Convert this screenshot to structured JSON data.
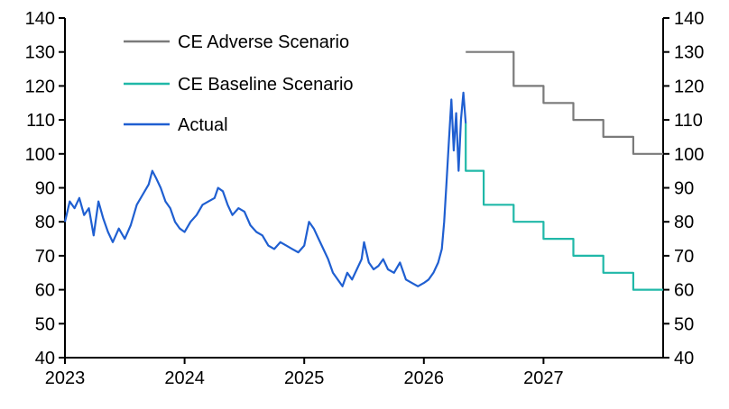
{
  "chart_data": {
    "type": "line",
    "title": "",
    "xlabel": "",
    "ylabel": "",
    "ylim": [
      40,
      140
    ],
    "yticks": [
      40,
      50,
      60,
      70,
      80,
      90,
      100,
      110,
      120,
      130,
      140
    ],
    "xlim": [
      2023.0,
      2028.0
    ],
    "xticks": [
      "2023",
      "2024",
      "2025",
      "2026",
      "2027"
    ],
    "dual_y_axis": true,
    "grid": false,
    "legend_position": "top-left",
    "legend": [
      "CE Adverse Scenario",
      "CE Baseline Scenario",
      "Actual"
    ],
    "series": [
      {
        "name": "CE Adverse Scenario",
        "color": "#7a7a7a",
        "style": "step",
        "points": [
          [
            2026.35,
            130
          ],
          [
            2026.75,
            130
          ],
          [
            2026.75,
            120
          ],
          [
            2027.0,
            120
          ],
          [
            2027.0,
            115
          ],
          [
            2027.25,
            115
          ],
          [
            2027.25,
            110
          ],
          [
            2027.5,
            110
          ],
          [
            2027.5,
            105
          ],
          [
            2027.75,
            105
          ],
          [
            2027.75,
            100
          ],
          [
            2028.0,
            100
          ]
        ]
      },
      {
        "name": "CE Baseline Scenario",
        "color": "#20b8a8",
        "style": "step",
        "points": [
          [
            2026.35,
            109
          ],
          [
            2026.35,
            95
          ],
          [
            2026.5,
            95
          ],
          [
            2026.5,
            85
          ],
          [
            2026.75,
            85
          ],
          [
            2026.75,
            80
          ],
          [
            2027.0,
            80
          ],
          [
            2027.0,
            75
          ],
          [
            2027.25,
            75
          ],
          [
            2027.25,
            70
          ],
          [
            2027.5,
            70
          ],
          [
            2027.5,
            65
          ],
          [
            2027.75,
            65
          ],
          [
            2027.75,
            60
          ],
          [
            2028.0,
            60
          ]
        ]
      },
      {
        "name": "Actual",
        "color": "#1f5fd1",
        "style": "line",
        "points": [
          [
            2023.0,
            80
          ],
          [
            2023.04,
            86
          ],
          [
            2023.08,
            84
          ],
          [
            2023.12,
            87
          ],
          [
            2023.16,
            82
          ],
          [
            2023.2,
            84
          ],
          [
            2023.24,
            76
          ],
          [
            2023.28,
            86
          ],
          [
            2023.32,
            81
          ],
          [
            2023.36,
            77
          ],
          [
            2023.4,
            74
          ],
          [
            2023.45,
            78
          ],
          [
            2023.5,
            75
          ],
          [
            2023.55,
            79
          ],
          [
            2023.6,
            85
          ],
          [
            2023.65,
            88
          ],
          [
            2023.7,
            91
          ],
          [
            2023.73,
            95
          ],
          [
            2023.76,
            93
          ],
          [
            2023.8,
            90
          ],
          [
            2023.84,
            86
          ],
          [
            2023.88,
            84
          ],
          [
            2023.92,
            80
          ],
          [
            2023.96,
            78
          ],
          [
            2024.0,
            77
          ],
          [
            2024.05,
            80
          ],
          [
            2024.1,
            82
          ],
          [
            2024.15,
            85
          ],
          [
            2024.2,
            86
          ],
          [
            2024.25,
            87
          ],
          [
            2024.28,
            90
          ],
          [
            2024.32,
            89
          ],
          [
            2024.36,
            85
          ],
          [
            2024.4,
            82
          ],
          [
            2024.45,
            84
          ],
          [
            2024.5,
            83
          ],
          [
            2024.55,
            79
          ],
          [
            2024.6,
            77
          ],
          [
            2024.65,
            76
          ],
          [
            2024.7,
            73
          ],
          [
            2024.75,
            72
          ],
          [
            2024.8,
            74
          ],
          [
            2024.85,
            73
          ],
          [
            2024.9,
            72
          ],
          [
            2024.95,
            71
          ],
          [
            2025.0,
            73
          ],
          [
            2025.04,
            80
          ],
          [
            2025.08,
            78
          ],
          [
            2025.12,
            75
          ],
          [
            2025.16,
            72
          ],
          [
            2025.2,
            69
          ],
          [
            2025.24,
            65
          ],
          [
            2025.28,
            63
          ],
          [
            2025.32,
            61
          ],
          [
            2025.36,
            65
          ],
          [
            2025.4,
            63
          ],
          [
            2025.44,
            66
          ],
          [
            2025.48,
            69
          ],
          [
            2025.5,
            74
          ],
          [
            2025.54,
            68
          ],
          [
            2025.58,
            66
          ],
          [
            2025.62,
            67
          ],
          [
            2025.66,
            69
          ],
          [
            2025.7,
            66
          ],
          [
            2025.75,
            65
          ],
          [
            2025.8,
            68
          ],
          [
            2025.85,
            63
          ],
          [
            2025.9,
            62
          ],
          [
            2025.95,
            61
          ],
          [
            2026.0,
            62
          ],
          [
            2026.04,
            63
          ],
          [
            2026.08,
            65
          ],
          [
            2026.12,
            68
          ],
          [
            2026.15,
            72
          ],
          [
            2026.17,
            80
          ],
          [
            2026.19,
            92
          ],
          [
            2026.21,
            104
          ],
          [
            2026.23,
            116
          ],
          [
            2026.25,
            101
          ],
          [
            2026.27,
            112
          ],
          [
            2026.29,
            95
          ],
          [
            2026.31,
            110
          ],
          [
            2026.33,
            118
          ],
          [
            2026.35,
            109
          ]
        ]
      }
    ]
  }
}
